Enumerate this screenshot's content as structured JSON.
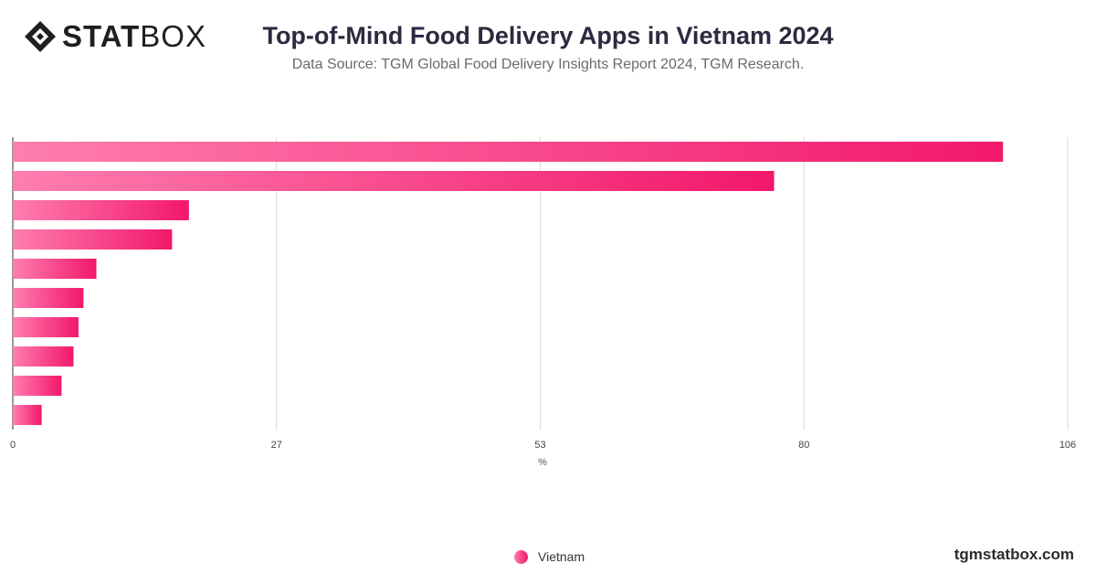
{
  "brand": {
    "logo_bold": "STAT",
    "logo_light": "BOX",
    "site": "tgmstatbox.com"
  },
  "header": {
    "title": "Top-of-Mind Food Delivery Apps in Vietnam 2024",
    "subtitle": "Data Source: TGM Global Food Delivery Insights Report 2024, TGM Research."
  },
  "colors": {
    "bar_start": "#ff7eb0",
    "bar_end": "#f2186b",
    "grid": "#d9d9d9",
    "axis": "#333333"
  },
  "chart_data": {
    "type": "bar",
    "orientation": "horizontal",
    "title": "Top-of-Mind Food Delivery Apps in Vietnam 2024",
    "xlabel": "%",
    "xlim": [
      0,
      106
    ],
    "xticks": [
      "0",
      "27",
      "53",
      "80",
      "106"
    ],
    "tick_values": [
      0,
      26.5,
      53,
      79.5,
      106
    ],
    "grid": true,
    "legend_position": "bottom-center",
    "series": [
      {
        "name": "Vietnam",
        "values": [
          99.5,
          76.5,
          17.7,
          16,
          8.4,
          7.1,
          6.6,
          6.1,
          4.9,
          2.9
        ]
      }
    ]
  }
}
